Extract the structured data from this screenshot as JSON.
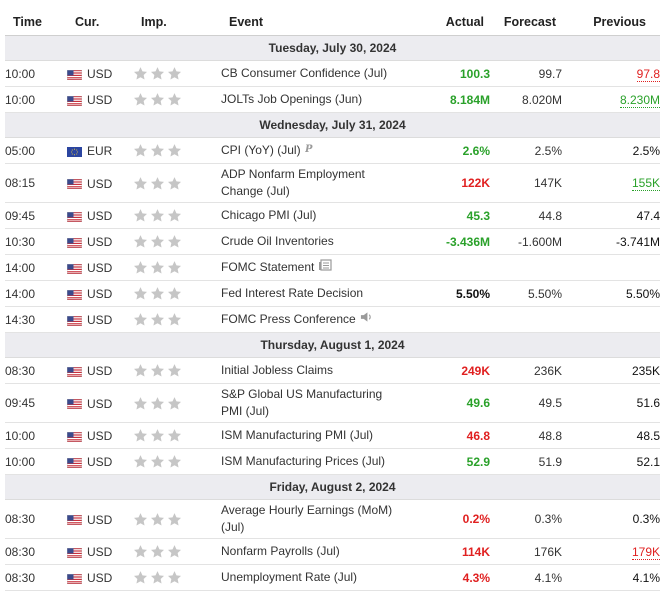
{
  "headers": {
    "time": "Time",
    "currency": "Cur.",
    "importance": "Imp.",
    "event": "Event",
    "actual": "Actual",
    "forecast": "Forecast",
    "previous": "Previous"
  },
  "colors": {
    "positive": "#2aa12a",
    "negative": "#e02020",
    "neutral": "#111111",
    "date_bg": "#ececf0",
    "star": "#c6c6c6"
  },
  "days": [
    {
      "date": "Tuesday, July 30, 2024",
      "events": [
        {
          "time": "10:00",
          "currency": "USD",
          "flag": "us-flag-icon",
          "importance": 1,
          "event": "CB Consumer Confidence (Jul)",
          "actual": "100.3",
          "actual_status": "positive",
          "forecast": "99.7",
          "previous": "97.8",
          "previous_status": "negative",
          "previous_revised": true
        },
        {
          "time": "10:00",
          "currency": "USD",
          "flag": "us-flag-icon",
          "importance": 1,
          "event": "JOLTs Job Openings (Jun)",
          "actual": "8.184M",
          "actual_status": "positive",
          "forecast": "8.020M",
          "previous": "8.230M",
          "previous_status": "positive",
          "previous_revised": true
        }
      ]
    },
    {
      "date": "Wednesday, July 31, 2024",
      "events": [
        {
          "time": "05:00",
          "currency": "EUR",
          "flag": "eu-flag-icon",
          "importance": 1,
          "event": "CPI (YoY) (Jul)",
          "event_icon": "preliminary-icon",
          "actual": "2.6%",
          "actual_status": "positive",
          "forecast": "2.5%",
          "previous": "2.5%",
          "previous_status": "neutral"
        },
        {
          "time": "08:15",
          "currency": "USD",
          "flag": "us-flag-icon",
          "importance": 1,
          "event": "ADP Nonfarm Employment Change (Jul)",
          "actual": "122K",
          "actual_status": "negative",
          "forecast": "147K",
          "previous": "155K",
          "previous_status": "positive",
          "previous_revised": true
        },
        {
          "time": "09:45",
          "currency": "USD",
          "flag": "us-flag-icon",
          "importance": 1,
          "event": "Chicago PMI (Jul)",
          "actual": "45.3",
          "actual_status": "positive",
          "forecast": "44.8",
          "previous": "47.4",
          "previous_status": "neutral"
        },
        {
          "time": "10:30",
          "currency": "USD",
          "flag": "us-flag-icon",
          "importance": 1,
          "event": "Crude Oil Inventories",
          "actual": "-3.436M",
          "actual_status": "positive",
          "forecast": "-1.600M",
          "previous": "-3.741M",
          "previous_status": "neutral"
        },
        {
          "time": "14:00",
          "currency": "USD",
          "flag": "us-flag-icon",
          "importance": 1,
          "event": "FOMC Statement",
          "event_icon": "document-icon",
          "actual": "",
          "actual_status": "neutral",
          "forecast": "",
          "previous": "",
          "previous_status": "neutral"
        },
        {
          "time": "14:00",
          "currency": "USD",
          "flag": "us-flag-icon",
          "importance": 1,
          "event": "Fed Interest Rate Decision",
          "actual": "5.50%",
          "actual_status": "neutral",
          "forecast": "5.50%",
          "previous": "5.50%",
          "previous_status": "neutral"
        },
        {
          "time": "14:30",
          "currency": "USD",
          "flag": "us-flag-icon",
          "importance": 1,
          "event": "FOMC Press Conference",
          "event_icon": "speaker-icon",
          "actual": "",
          "actual_status": "neutral",
          "forecast": "",
          "previous": "",
          "previous_status": "neutral"
        }
      ]
    },
    {
      "date": "Thursday, August 1, 2024",
      "events": [
        {
          "time": "08:30",
          "currency": "USD",
          "flag": "us-flag-icon",
          "importance": 1,
          "event": "Initial Jobless Claims",
          "actual": "249K",
          "actual_status": "negative",
          "forecast": "236K",
          "previous": "235K",
          "previous_status": "neutral"
        },
        {
          "time": "09:45",
          "currency": "USD",
          "flag": "us-flag-icon",
          "importance": 1,
          "event": "S&P Global US Manufacturing PMI (Jul)",
          "actual": "49.6",
          "actual_status": "positive",
          "forecast": "49.5",
          "previous": "51.6",
          "previous_status": "neutral"
        },
        {
          "time": "10:00",
          "currency": "USD",
          "flag": "us-flag-icon",
          "importance": 1,
          "event": "ISM Manufacturing PMI (Jul)",
          "actual": "46.8",
          "actual_status": "negative",
          "forecast": "48.8",
          "previous": "48.5",
          "previous_status": "neutral"
        },
        {
          "time": "10:00",
          "currency": "USD",
          "flag": "us-flag-icon",
          "importance": 1,
          "event": "ISM Manufacturing Prices (Jul)",
          "actual": "52.9",
          "actual_status": "positive",
          "forecast": "51.9",
          "previous": "52.1",
          "previous_status": "neutral"
        }
      ]
    },
    {
      "date": "Friday, August 2, 2024",
      "events": [
        {
          "time": "08:30",
          "currency": "USD",
          "flag": "us-flag-icon",
          "importance": 1,
          "event": "Average Hourly Earnings (MoM) (Jul)",
          "actual": "0.2%",
          "actual_status": "negative",
          "forecast": "0.3%",
          "previous": "0.3%",
          "previous_status": "neutral"
        },
        {
          "time": "08:30",
          "currency": "USD",
          "flag": "us-flag-icon",
          "importance": 1,
          "event": "Nonfarm Payrolls (Jul)",
          "actual": "114K",
          "actual_status": "negative",
          "forecast": "176K",
          "previous": "179K",
          "previous_status": "negative",
          "previous_revised": true
        },
        {
          "time": "08:30",
          "currency": "USD",
          "flag": "us-flag-icon",
          "importance": 1,
          "event": "Unemployment Rate (Jul)",
          "actual": "4.3%",
          "actual_status": "negative",
          "forecast": "4.1%",
          "previous": "4.1%",
          "previous_status": "neutral"
        }
      ]
    }
  ]
}
